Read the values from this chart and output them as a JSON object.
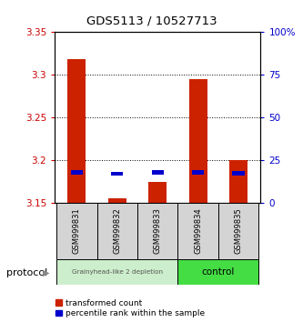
{
  "title": "GDS5113 / 10527713",
  "samples": [
    "GSM999831",
    "GSM999832",
    "GSM999833",
    "GSM999834",
    "GSM999835"
  ],
  "transformed_counts": [
    3.318,
    3.155,
    3.175,
    3.295,
    3.2
  ],
  "percentile_ranks": [
    18.0,
    17.0,
    18.0,
    18.0,
    17.5
  ],
  "bar_bottom": 3.15,
  "ylim_left": [
    3.15,
    3.35
  ],
  "ylim_right": [
    0,
    100
  ],
  "yticks_left": [
    3.15,
    3.2,
    3.25,
    3.3,
    3.35
  ],
  "yticks_right": [
    0,
    25,
    50,
    75,
    100
  ],
  "ytick_labels_left": [
    "3.15",
    "3.2",
    "3.25",
    "3.3",
    "3.35"
  ],
  "ytick_labels_right": [
    "0",
    "25",
    "50",
    "75",
    "100%"
  ],
  "left_color": "#cc0000",
  "right_color": "#0000cc",
  "bar_color_red": "#cc2200",
  "bar_color_blue": "#0000cc",
  "group1_label": "Grainyhead-like 2 depletion",
  "group2_label": "control",
  "group1_color": "#cceecc",
  "group2_color": "#44dd44",
  "group1_samples": [
    0,
    1,
    2
  ],
  "group2_samples": [
    3,
    4
  ],
  "protocol_label": "protocol",
  "legend1": "transformed count",
  "legend2": "percentile rank within the sample",
  "background_color": "#ffffff",
  "plot_bg": "#ffffff"
}
